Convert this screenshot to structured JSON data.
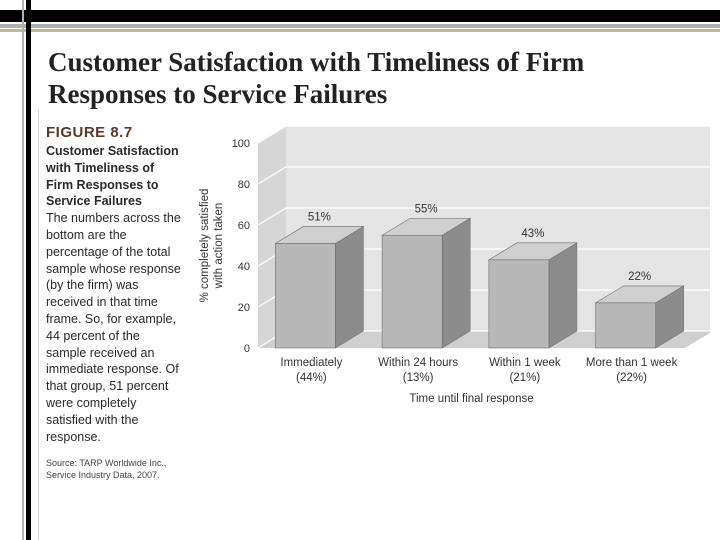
{
  "slide": {
    "title_line1": "Customer Satisfaction with Timeliness of Firm",
    "title_line2": "Responses to Service Failures"
  },
  "caption": {
    "figure_label": "FIGURE 8.7",
    "figure_title": "Customer Satisfaction with Timeliness of Firm Responses to Service Failures",
    "description": "The numbers across the bottom are the percentage of the total sample whose response (by the firm) was received in that time frame. So, for example, 44 percent of the sample received an immediate response. Of that group, 51 percent were completely satisfied with the response.",
    "source": "Source: TARP Worldwide Inc., Service Industry Data, 2007."
  },
  "chart_data": {
    "type": "bar",
    "categories": [
      "Immediately",
      "Within 24 hours",
      "Within 1 week",
      "More than 1 week"
    ],
    "sample_shares": [
      "(44%)",
      "(13%)",
      "(21%)",
      "(22%)"
    ],
    "values": [
      51,
      55,
      43,
      22
    ],
    "data_labels": [
      "51%",
      "55%",
      "43%",
      "22%"
    ],
    "ylabel_line1": "% completely satisfied",
    "ylabel_line2": "with action taken",
    "xlabel": "Time until final response",
    "yticks": [
      0,
      20,
      40,
      60,
      80,
      100
    ],
    "ylim": [
      0,
      100
    ],
    "grid": true,
    "style": "3d",
    "colors": {
      "bar_front": "#b8b8b8",
      "bar_side": "#8c8c8c",
      "bar_top": "#cfcfcf",
      "wall": "#e4e4e4",
      "floor": "#cfcfcf",
      "grid": "#ffffff",
      "text": "#333333"
    }
  }
}
